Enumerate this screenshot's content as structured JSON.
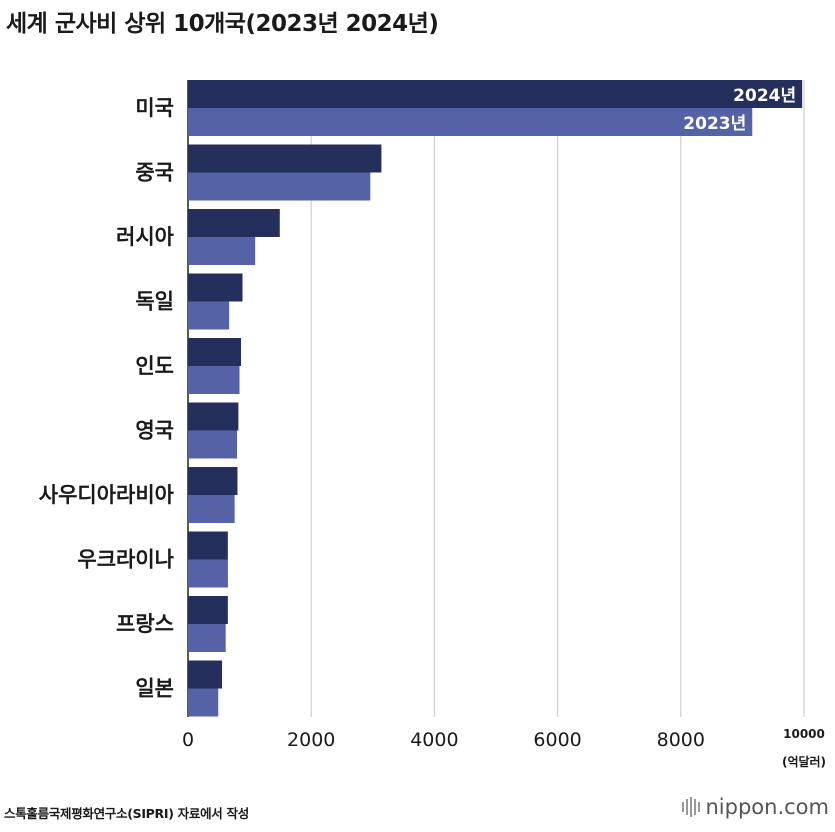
{
  "title": "세계 군사비 상위 10개국(2023년 2024년)",
  "source": "스톡홀름국제평화연구소(SIPRI) 자료에서 작성",
  "brand": "nippon.com",
  "chart_data": {
    "type": "bar",
    "orientation": "horizontal",
    "categories": [
      "미국",
      "중국",
      "러시아",
      "독일",
      "인도",
      "영국",
      "사우디아라비아",
      "우크라이나",
      "프랑스",
      "일본"
    ],
    "series": [
      {
        "name": "2024년",
        "values": [
          9970,
          3140,
          1490,
          885,
          861,
          818,
          803,
          647,
          647,
          553
        ],
        "color": "#252f5c"
      },
      {
        "name": "2023년",
        "values": [
          9160,
          2960,
          1090,
          668,
          836,
          796,
          757,
          648,
          612,
          491
        ],
        "color": "#5563a6"
      }
    ],
    "xlim": [
      0,
      10000
    ],
    "xticks": [
      "0",
      "2000",
      "4000",
      "6000",
      "8000",
      "10000"
    ],
    "unit": "(억달러)",
    "grid": true,
    "legend": "inline labels on first bars"
  }
}
